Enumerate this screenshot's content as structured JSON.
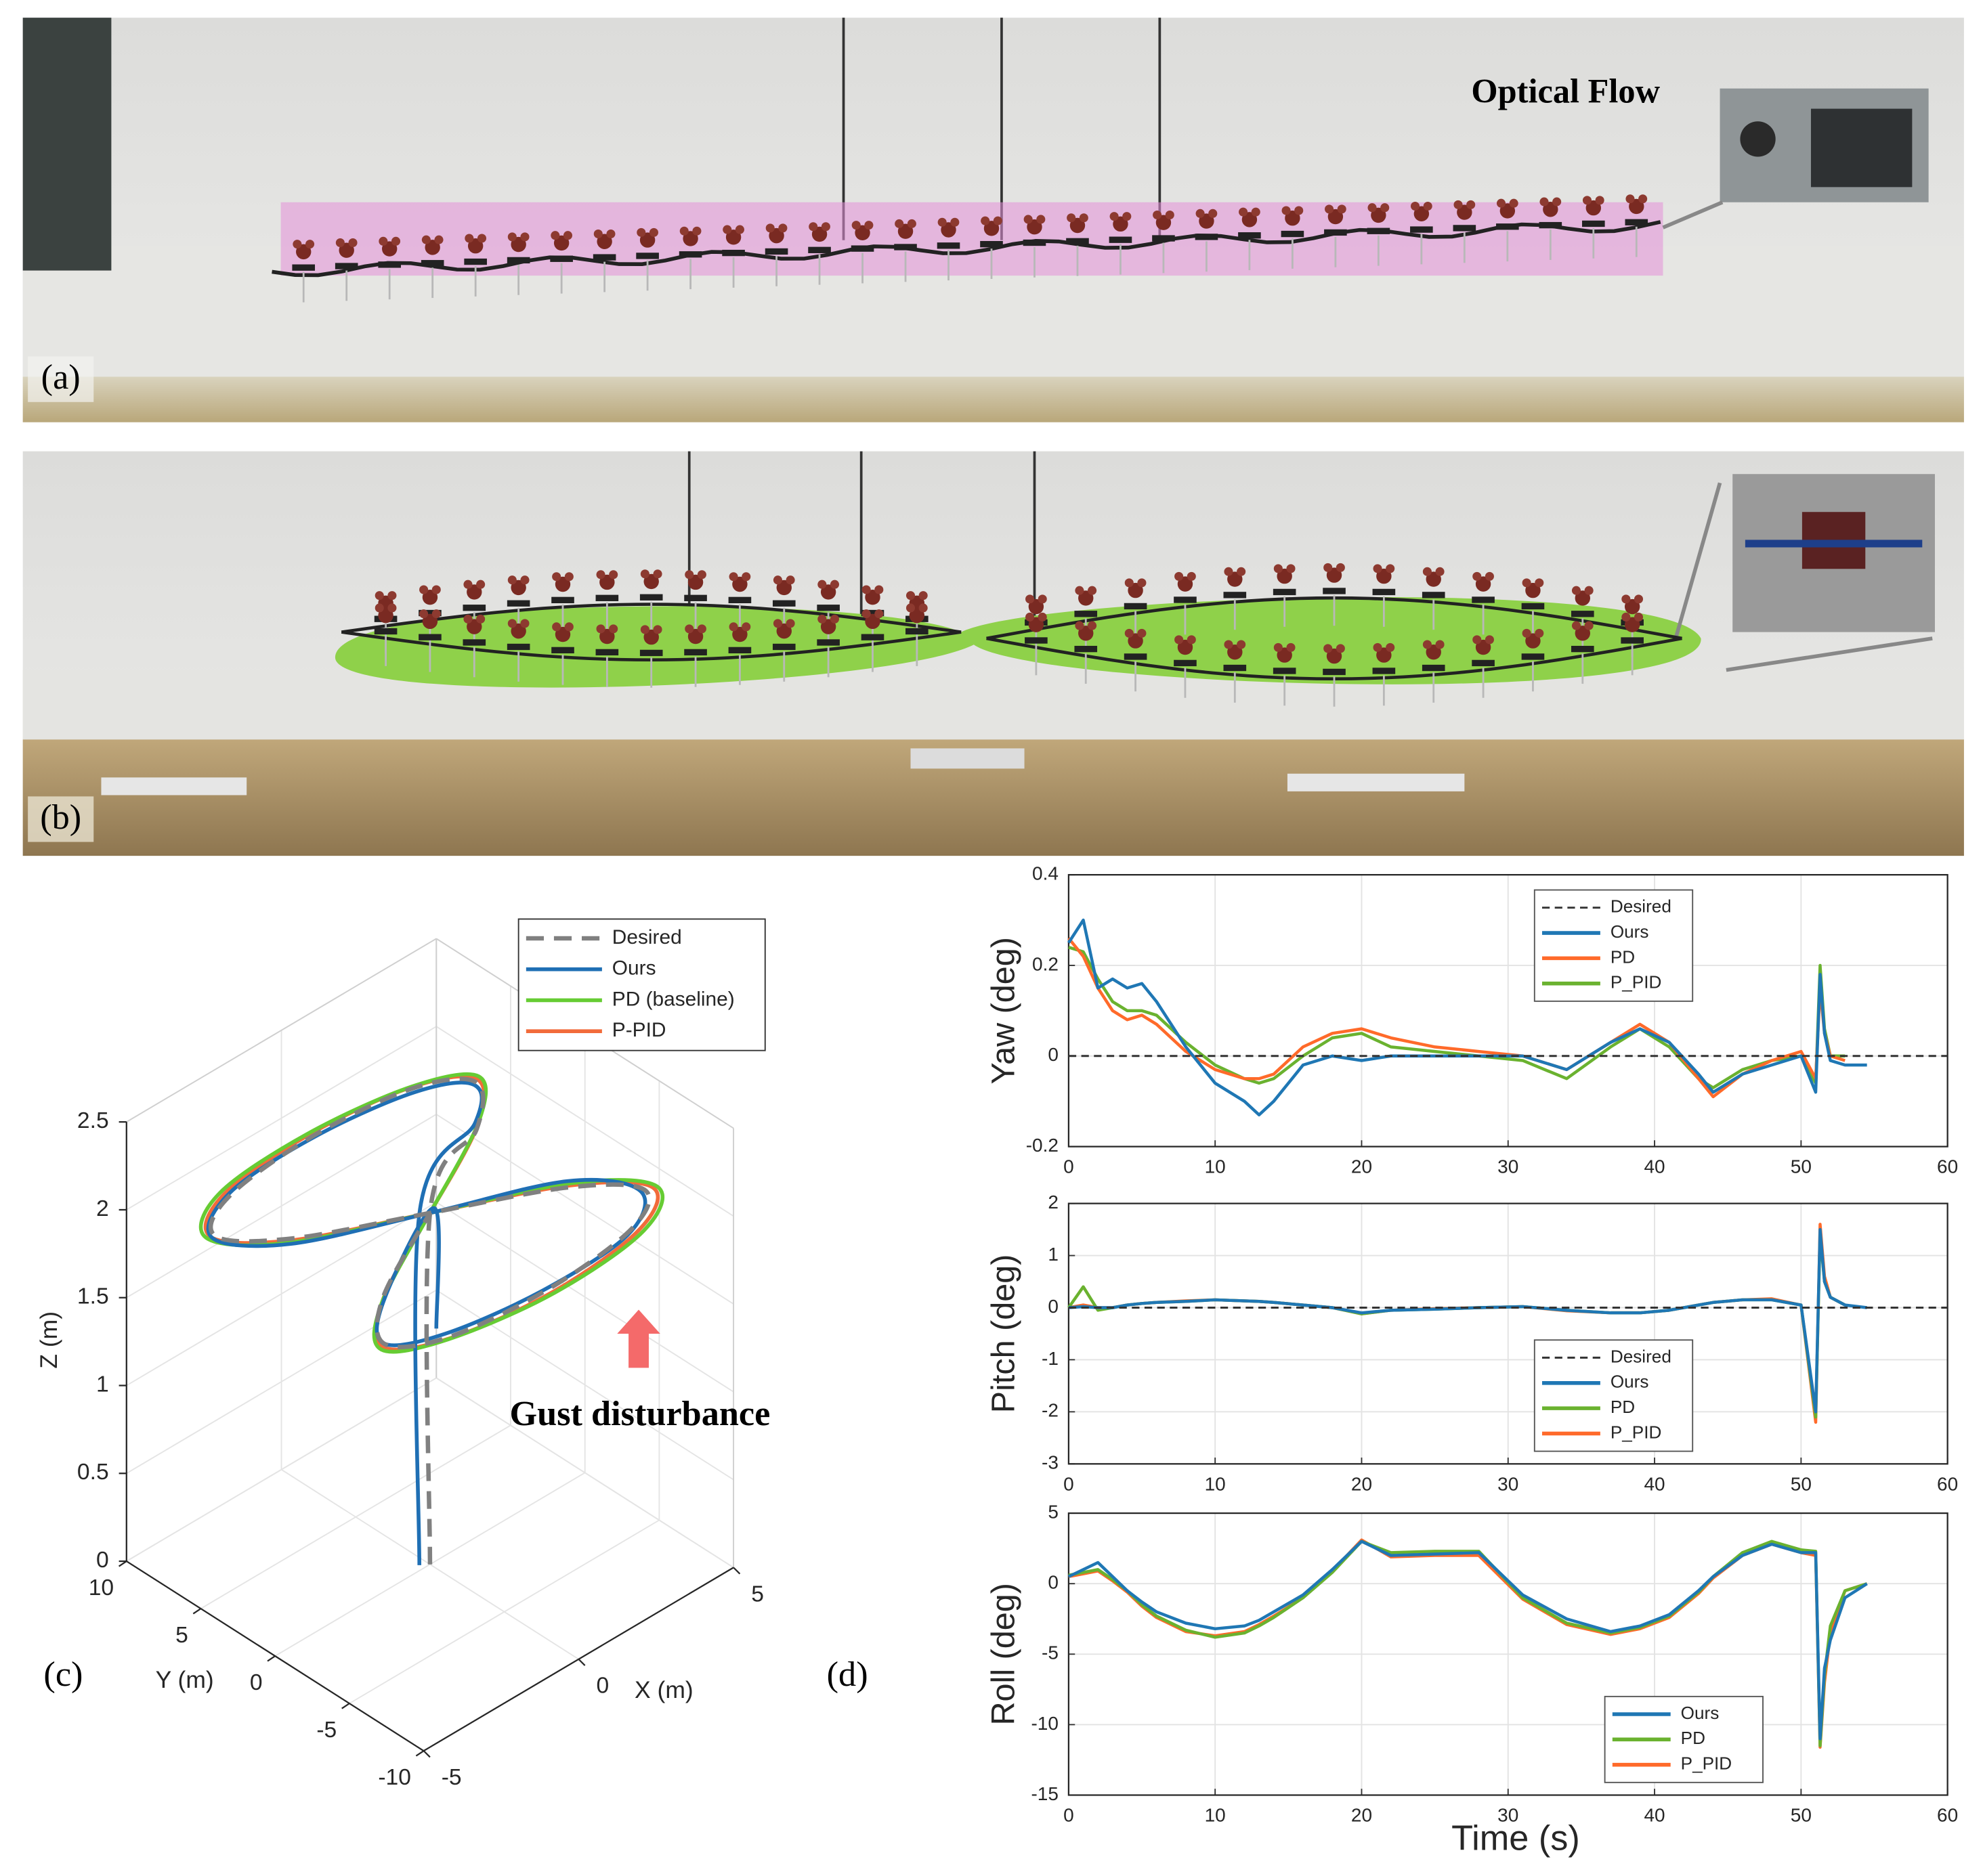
{
  "panels": [
    {
      "label": "(a)",
      "annotation": "Optical Flow"
    },
    {
      "label": "(b)"
    },
    {
      "label": "(c)"
    },
    {
      "label": "(d)"
    }
  ],
  "chart_data": [
    {
      "type": "line3d",
      "xlabel": "X (m)",
      "ylabel": "Y (m)",
      "zlabel": "Z (m)",
      "annotation": "Gust disturbance",
      "xlim": [
        -5,
        5
      ],
      "ylim": [
        -10,
        10
      ],
      "zlim": [
        0,
        2.5
      ],
      "xticks": [
        -5,
        0,
        5
      ],
      "yticks": [
        -10,
        -5,
        0,
        5,
        10
      ],
      "zticks": [
        0,
        0.5,
        1,
        1.5,
        2,
        2.5
      ],
      "grid": true,
      "legend": "upper right",
      "series": [
        {
          "name": "Desired",
          "color": "#808080",
          "dash": true,
          "x": [
            0,
            0,
            2.97,
            4.2,
            2.97,
            0,
            -2.97,
            -4.2,
            -2.97,
            0,
            2.97,
            4.2,
            2.97,
            0,
            -2.97,
            -4.2,
            -2.97,
            0
          ],
          "y": [
            0,
            0,
            3.06,
            5.66,
            7.39,
            8,
            7.39,
            5.66,
            3.06,
            0,
            -3.06,
            -5.66,
            -7.39,
            -8,
            -7.39,
            -5.66,
            -3.06,
            0
          ],
          "z": [
            0,
            2,
            2,
            2,
            2,
            2,
            2,
            2,
            2,
            2,
            2,
            2,
            2,
            2,
            2,
            2,
            2,
            2
          ]
        },
        {
          "name": "Ours",
          "color": "#1f6fb4",
          "x": [
            -0.2,
            -0.2,
            2.9,
            4.1,
            3.0,
            0.1,
            -2.9,
            -4.3,
            -3.0,
            0,
            3.0,
            4.1,
            2.9,
            -0.1,
            -3.0,
            -4.2,
            -2.9,
            0.2,
            0.3
          ],
          "y": [
            0.3,
            0.3,
            3.0,
            5.6,
            7.3,
            7.9,
            7.4,
            5.7,
            3.1,
            0,
            -3.0,
            -5.6,
            -7.3,
            -7.9,
            -7.3,
            -5.6,
            -3.0,
            0.1,
            0.2
          ],
          "z": [
            0,
            2,
            2.05,
            2.0,
            1.98,
            2,
            2.02,
            2.0,
            1.97,
            2,
            2.03,
            2.0,
            1.97,
            2,
            2.02,
            2.0,
            1.98,
            2,
            1.3
          ]
        },
        {
          "name": "PD (baseline)",
          "color": "#66cc33",
          "x": [
            0,
            3.1,
            4.4,
            3.1,
            0,
            -3.1,
            -4.4,
            -3.1,
            0,
            3.1,
            4.5,
            3.2,
            0,
            -3.1,
            -4.4,
            -3.1,
            0
          ],
          "y": [
            0,
            3.2,
            5.9,
            7.7,
            8.3,
            7.7,
            5.9,
            3.2,
            0,
            -3.2,
            -5.9,
            -7.7,
            -8.4,
            -7.7,
            -5.9,
            -3.2,
            0
          ],
          "z": [
            2,
            2.02,
            2,
            1.98,
            2,
            2.02,
            2,
            1.98,
            2,
            2.02,
            2,
            1.98,
            2,
            2.02,
            2,
            1.98,
            2
          ]
        },
        {
          "name": "P-PID",
          "color": "#f26b3a",
          "x": [
            0,
            3.0,
            4.3,
            3.0,
            0,
            -3.0,
            -4.3,
            -3.0,
            0,
            3.0,
            4.4,
            3.1,
            0,
            -3.0,
            -4.3,
            -3.0,
            0
          ],
          "y": [
            0,
            3.1,
            5.8,
            7.6,
            8.2,
            7.6,
            5.8,
            3.1,
            0,
            -3.1,
            -5.8,
            -7.6,
            -8.3,
            -7.6,
            -5.8,
            -3.1,
            0
          ],
          "z": [
            2,
            2.01,
            2,
            1.99,
            2,
            2.01,
            2,
            1.99,
            2,
            2.01,
            2,
            1.99,
            2,
            2.01,
            2,
            1.99,
            2
          ]
        }
      ]
    },
    {
      "type": "line",
      "ylabel": "Yaw (deg)",
      "x": [
        0,
        1,
        2,
        3,
        4,
        5,
        6,
        8,
        10,
        12,
        13,
        14,
        16,
        18,
        20,
        22,
        25,
        28,
        31,
        34,
        37,
        39,
        41,
        43,
        44,
        46,
        48,
        50,
        51,
        51.3,
        51.6,
        52,
        53,
        54.5,
        60
      ],
      "xlim": [
        0,
        60
      ],
      "xticks": [
        0,
        10,
        20,
        30,
        40,
        50,
        60
      ],
      "ylim": [
        -0.2,
        0.4
      ],
      "yticks": [
        -0.2,
        0,
        0.2,
        0.4
      ],
      "grid": true,
      "legend": "upper center",
      "series": [
        {
          "name": "Desired",
          "color": "#333333",
          "dash": true,
          "values": [
            0,
            0,
            0,
            0,
            0,
            0,
            0,
            0,
            0,
            0,
            0,
            0,
            0,
            0,
            0,
            0,
            0,
            0,
            0,
            0,
            0,
            0,
            0,
            0,
            0,
            0,
            0,
            0,
            0,
            0,
            0,
            0,
            0,
            0,
            0
          ]
        },
        {
          "name": "Ours",
          "color": "#1f77b4",
          "values": [
            0.25,
            0.3,
            0.15,
            0.17,
            0.15,
            0.16,
            0.12,
            0.02,
            -0.06,
            -0.1,
            -0.13,
            -0.1,
            -0.02,
            0.0,
            -0.01,
            0.0,
            0.0,
            0.0,
            0.0,
            -0.03,
            0.03,
            0.06,
            0.03,
            -0.04,
            -0.08,
            -0.04,
            -0.02,
            0.0,
            -0.08,
            0.18,
            0.05,
            -0.01,
            -0.02,
            -0.02,
            null
          ]
        },
        {
          "name": "PD",
          "color": "#ff6a2a",
          "values": [
            0.26,
            0.22,
            0.15,
            0.1,
            0.08,
            0.09,
            0.07,
            0.01,
            -0.03,
            -0.05,
            -0.05,
            -0.04,
            0.02,
            0.05,
            0.06,
            0.04,
            0.02,
            0.01,
            0.0,
            -0.03,
            0.03,
            0.07,
            0.03,
            -0.05,
            -0.09,
            -0.04,
            -0.01,
            0.01,
            -0.05,
            0.15,
            0.05,
            0.0,
            -0.01,
            null,
            null
          ]
        },
        {
          "name": "P_PID",
          "color": "#6ab22f",
          "values": [
            0.24,
            0.23,
            0.17,
            0.12,
            0.1,
            0.1,
            0.09,
            0.03,
            -0.02,
            -0.05,
            -0.06,
            -0.05,
            0.0,
            0.04,
            0.05,
            0.02,
            0.01,
            0.0,
            -0.01,
            -0.05,
            0.02,
            0.06,
            0.02,
            -0.05,
            -0.07,
            -0.03,
            -0.01,
            0.0,
            -0.06,
            0.2,
            0.06,
            0.0,
            0.0,
            null,
            null
          ]
        }
      ]
    },
    {
      "type": "line",
      "ylabel": "Pitch (deg)",
      "x": [
        0,
        1,
        2,
        3,
        4,
        5,
        6,
        8,
        10,
        12,
        13,
        14,
        16,
        18,
        20,
        22,
        25,
        28,
        31,
        34,
        37,
        39,
        41,
        43,
        44,
        46,
        48,
        50,
        51,
        51.3,
        51.6,
        52,
        53,
        54.5,
        60
      ],
      "xlim": [
        0,
        60
      ],
      "xticks": [
        0,
        10,
        20,
        30,
        40,
        50,
        60
      ],
      "ylim": [
        -3,
        2
      ],
      "yticks": [
        -3,
        -2,
        -1,
        0,
        1,
        2
      ],
      "grid": true,
      "legend": "lower center",
      "series": [
        {
          "name": "Desired",
          "color": "#333333",
          "dash": true,
          "values": [
            0,
            0,
            0,
            0,
            0,
            0,
            0,
            0,
            0,
            0,
            0,
            0,
            0,
            0,
            0,
            0,
            0,
            0,
            0,
            0,
            0,
            0,
            0,
            0,
            0,
            0,
            0,
            0,
            0,
            0,
            0,
            0,
            0,
            0,
            0
          ]
        },
        {
          "name": "Ours",
          "color": "#1f77b4",
          "values": [
            0,
            0.02,
            0.0,
            0.0,
            0.05,
            0.08,
            0.1,
            0.12,
            0.15,
            0.13,
            0.12,
            0.1,
            0.05,
            0.0,
            -0.1,
            -0.05,
            -0.03,
            0.0,
            0.02,
            -0.05,
            -0.1,
            -0.1,
            -0.05,
            0.05,
            0.1,
            0.15,
            0.15,
            0.05,
            -2.0,
            1.5,
            0.5,
            0.2,
            0.05,
            0.0,
            null
          ]
        },
        {
          "name": "PD",
          "color": "#6ab22f",
          "values": [
            0,
            0.4,
            -0.05,
            0.0,
            0.05,
            0.08,
            0.1,
            0.12,
            0.15,
            0.13,
            0.12,
            0.1,
            0.05,
            0.0,
            -0.12,
            -0.05,
            -0.03,
            0.0,
            0.02,
            -0.05,
            -0.1,
            -0.1,
            -0.05,
            0.05,
            0.1,
            0.15,
            0.15,
            0.05,
            -2.1,
            1.4,
            0.5,
            0.2,
            0.05,
            null,
            null
          ]
        },
        {
          "name": "P_PID",
          "color": "#ff6a2a",
          "values": [
            0,
            0.05,
            0.0,
            0.0,
            0.05,
            0.08,
            0.1,
            0.13,
            0.15,
            0.13,
            0.12,
            0.1,
            0.05,
            0.0,
            -0.12,
            -0.05,
            -0.02,
            0.0,
            0.02,
            -0.06,
            -0.1,
            -0.1,
            -0.05,
            0.05,
            0.1,
            0.15,
            0.17,
            0.05,
            -2.2,
            1.6,
            0.6,
            0.2,
            0.05,
            null,
            null
          ]
        }
      ]
    },
    {
      "type": "line",
      "ylabel": "Roll (deg)",
      "xlabel": "Time (s)",
      "x": [
        0,
        1,
        2,
        3,
        4,
        5,
        6,
        8,
        10,
        12,
        13,
        14,
        16,
        18,
        20,
        22,
        25,
        28,
        31,
        34,
        37,
        39,
        41,
        43,
        44,
        46,
        48,
        50,
        51,
        51.3,
        51.6,
        52,
        53,
        54.5
      ],
      "xlim": [
        0,
        60
      ],
      "xticks": [
        0,
        10,
        20,
        30,
        40,
        50,
        60
      ],
      "ylim": [
        -15,
        5
      ],
      "yticks": [
        -15,
        -10,
        -5,
        0,
        5
      ],
      "grid": true,
      "legend": "lower right",
      "series": [
        {
          "name": "Ours",
          "color": "#1f77b4",
          "values": [
            0.5,
            1.0,
            1.5,
            0.5,
            -0.5,
            -1.3,
            -2.0,
            -2.8,
            -3.2,
            -3.0,
            -2.6,
            -2.0,
            -0.8,
            1.0,
            3.0,
            2.0,
            2.1,
            2.2,
            -0.8,
            -2.5,
            -3.4,
            -3.0,
            -2.2,
            -0.5,
            0.5,
            2.0,
            2.8,
            2.2,
            2.2,
            -11.0,
            -6.0,
            -4.0,
            -1.0,
            0.0
          ]
        },
        {
          "name": "PD",
          "color": "#6ab22f",
          "values": [
            0.6,
            0.8,
            1.0,
            0.3,
            -0.5,
            -1.5,
            -2.3,
            -3.3,
            -3.8,
            -3.5,
            -3.0,
            -2.4,
            -1.0,
            0.8,
            3.0,
            2.2,
            2.3,
            2.3,
            -1.0,
            -2.8,
            -3.5,
            -3.1,
            -2.3,
            -0.6,
            0.5,
            2.2,
            3.0,
            2.4,
            2.3,
            -11.5,
            -6.5,
            -3.0,
            -0.5,
            0.0
          ]
        },
        {
          "name": "P_PID",
          "color": "#ff6a2a",
          "values": [
            0.5,
            0.7,
            0.9,
            0.2,
            -0.6,
            -1.6,
            -2.4,
            -3.4,
            -3.7,
            -3.4,
            -2.9,
            -2.3,
            -1.0,
            0.9,
            3.1,
            1.9,
            2.0,
            2.0,
            -1.1,
            -2.9,
            -3.6,
            -3.2,
            -2.4,
            -0.7,
            0.4,
            2.0,
            2.8,
            2.2,
            2.0,
            -11.6,
            -7.0,
            -3.5,
            -0.5,
            0.0
          ]
        }
      ]
    }
  ]
}
